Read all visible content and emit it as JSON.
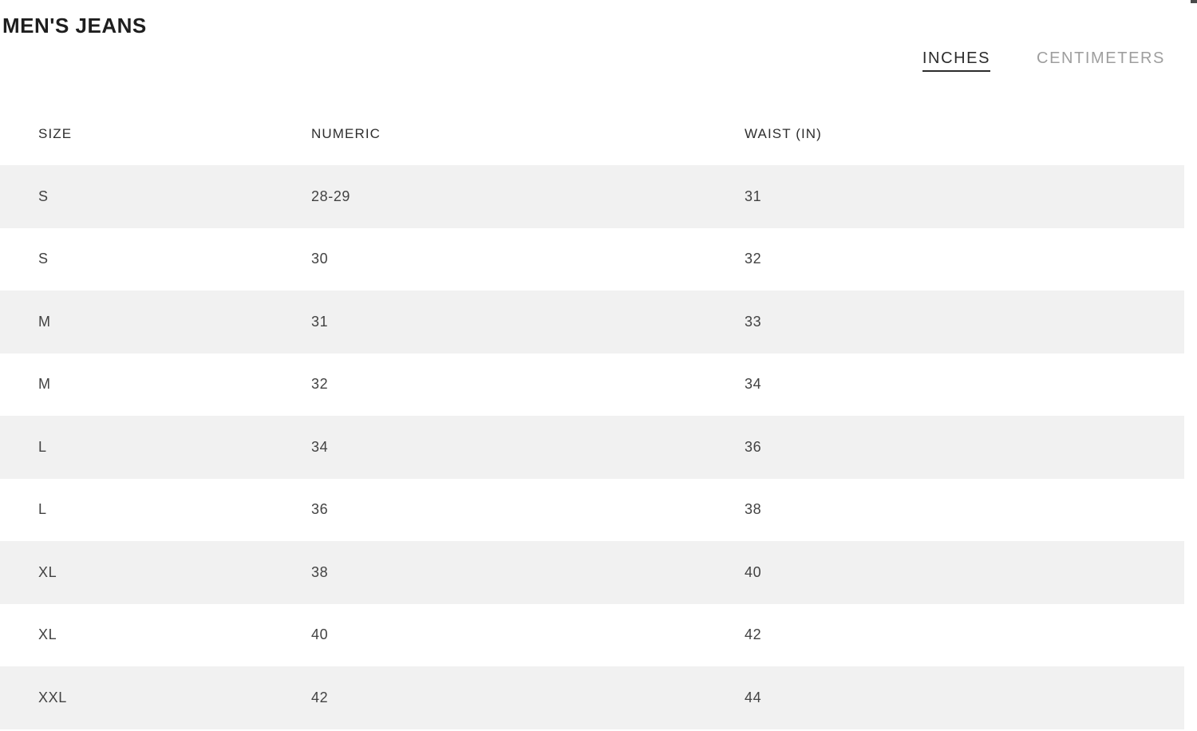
{
  "page": {
    "title": "MEN'S JEANS"
  },
  "unit_toggle": {
    "options": [
      {
        "label": "INCHES",
        "active": true
      },
      {
        "label": "CENTIMETERS",
        "active": false
      }
    ]
  },
  "table": {
    "columns": [
      "SIZE",
      "NUMERIC",
      "WAIST (IN)"
    ],
    "rows": [
      [
        "S",
        "28-29",
        "31"
      ],
      [
        "S",
        "30",
        "32"
      ],
      [
        "M",
        "31",
        "33"
      ],
      [
        "M",
        "32",
        "34"
      ],
      [
        "L",
        "34",
        "36"
      ],
      [
        "L",
        "36",
        "38"
      ],
      [
        "XL",
        "38",
        "40"
      ],
      [
        "XL",
        "40",
        "42"
      ],
      [
        "XXL",
        "42",
        "44"
      ]
    ]
  },
  "colors": {
    "row_stripe": "#f1f1f1",
    "text_dark": "#2b2b2b",
    "text_muted": "#9e9e9e",
    "background": "#ffffff"
  }
}
